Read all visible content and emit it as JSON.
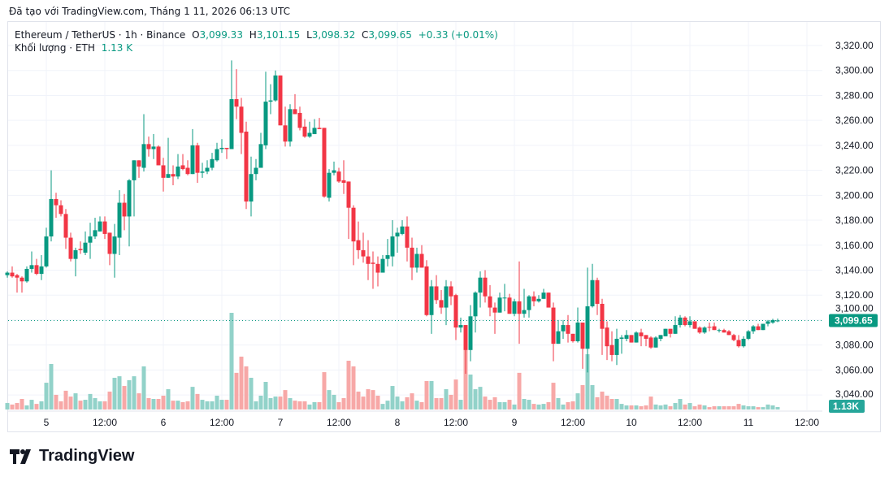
{
  "caption": "Đã tạo với TradingView.com, Tháng 1 11, 2026 06:13 UTC",
  "legend": {
    "symbol": "Ethereum / TetherUS · 1h · Binance",
    "o_label": "O",
    "o": "3,099.33",
    "h_label": "H",
    "h": "3,101.15",
    "l_label": "L",
    "l": "3,098.32",
    "c_label": "C",
    "c": "3,099.65",
    "change": "+0.33 (+0.01%)",
    "volume_label": "Khối lượng · ETH",
    "volume_value": "1.13 K"
  },
  "logo_text": "TradingView",
  "colors": {
    "up": "#089981",
    "down": "#f23645",
    "up_volume": "#92d2c9",
    "down_volume": "#f7a8a7",
    "grid": "#f0f3fa"
  },
  "chart_data": {
    "type": "candlestick",
    "interval": "1h",
    "y_ticks": [
      "3,320.00",
      "3,300.00",
      "3,280.00",
      "3,260.00",
      "3,240.00",
      "3,220.00",
      "3,200.00",
      "3,180.00",
      "3,160.00",
      "3,140.00",
      "3,120.00",
      "3,100.00",
      "3,080.00",
      "3,060.00",
      "3,040.00"
    ],
    "ylim": [
      3040,
      3320
    ],
    "x_ticks": [
      "5",
      "12:00",
      "6",
      "12:00",
      "7",
      "12:00",
      "8",
      "12:00",
      "9",
      "12:00",
      "10",
      "12:00",
      "11",
      "12:00"
    ],
    "last_price_label": "3,099.65",
    "last_volume_label": "1.13K",
    "volume_unit": "K ETH",
    "grid": true,
    "candles_fields": [
      "open",
      "high",
      "low",
      "close",
      "volume"
    ],
    "candles": [
      [
        3136,
        3139,
        3134,
        3138,
        3.0
      ],
      [
        3138,
        3143,
        3134,
        3135,
        2.3
      ],
      [
        3136,
        3137,
        3122,
        3134,
        3.0
      ],
      [
        3134,
        3135,
        3122,
        3131,
        4.9
      ],
      [
        3131,
        3143,
        3130,
        3141,
        1.9
      ],
      [
        3141,
        3155,
        3138,
        3144,
        4.5
      ],
      [
        3144,
        3149,
        3136,
        3137,
        2.6
      ],
      [
        3137,
        3152,
        3132,
        3143,
        3.8
      ],
      [
        3143,
        3174,
        3142,
        3167,
        12.4
      ],
      [
        3167,
        3220,
        3163,
        3197,
        21.1
      ],
      [
        3197,
        3202,
        3182,
        3192,
        6.8
      ],
      [
        3192,
        3196,
        3183,
        3185,
        3.8
      ],
      [
        3185,
        3189,
        3157,
        3166,
        8.7
      ],
      [
        3166,
        3170,
        3147,
        3149,
        6.0
      ],
      [
        3149,
        3158,
        3135,
        3156,
        7.5
      ],
      [
        3157,
        3163,
        3153,
        3156,
        4.1
      ],
      [
        3154,
        3171,
        3152,
        3162,
        4.5
      ],
      [
        3162,
        3178,
        3149,
        3167,
        7.2
      ],
      [
        3167,
        3182,
        3165,
        3172,
        5.3
      ],
      [
        3171,
        3183,
        3171,
        3179,
        3.8
      ],
      [
        3179,
        3183,
        3165,
        3169,
        3.8
      ],
      [
        3170,
        3170,
        3144,
        3153,
        8.3
      ],
      [
        3153,
        3177,
        3134,
        3167,
        14.7
      ],
      [
        3166,
        3204,
        3152,
        3194,
        15.4
      ],
      [
        3194,
        3201,
        3172,
        3183,
        10.9
      ],
      [
        3183,
        3213,
        3159,
        3212,
        13.6
      ],
      [
        3212,
        3228,
        3183,
        3228,
        15.4
      ],
      [
        3228,
        3228,
        3214,
        3223,
        7.5
      ],
      [
        3222,
        3265,
        3219,
        3241,
        20.0
      ],
      [
        3241,
        3247,
        3231,
        3237,
        5.3
      ],
      [
        3237,
        3249,
        3229,
        3239,
        4.9
      ],
      [
        3239,
        3240,
        3224,
        3224,
        4.9
      ],
      [
        3224,
        3230,
        3203,
        3214,
        6.4
      ],
      [
        3214,
        3246,
        3214,
        3217,
        9.4
      ],
      [
        3217,
        3224,
        3208,
        3215,
        4.1
      ],
      [
        3215,
        3233,
        3213,
        3223,
        4.1
      ],
      [
        3224,
        3233,
        3220,
        3221,
        3.4
      ],
      [
        3222,
        3228,
        3216,
        3217,
        3.8
      ],
      [
        3217,
        3253,
        3217,
        3240,
        10.5
      ],
      [
        3240,
        3242,
        3210,
        3218,
        7.2
      ],
      [
        3218,
        3226,
        3214,
        3219,
        4.5
      ],
      [
        3219,
        3228,
        3217,
        3222,
        3.8
      ],
      [
        3222,
        3234,
        3220,
        3229,
        3.8
      ],
      [
        3228,
        3242,
        3227,
        3237,
        6.4
      ],
      [
        3237,
        3245,
        3234,
        3238,
        4.5
      ],
      [
        3238,
        3238,
        3229,
        3237,
        4.5
      ],
      [
        3237,
        3308,
        3237,
        3277,
        44.8
      ],
      [
        3277,
        3301,
        3261,
        3271,
        17.0
      ],
      [
        3271,
        3278,
        3233,
        3250,
        24.5
      ],
      [
        3251,
        3259,
        3189,
        3195,
        20.0
      ],
      [
        3195,
        3231,
        3183,
        3217,
        14.7
      ],
      [
        3217,
        3229,
        3212,
        3222,
        3.8
      ],
      [
        3222,
        3250,
        3222,
        3241,
        6.4
      ],
      [
        3240,
        3299,
        3237,
        3275,
        12.8
      ],
      [
        3275,
        3289,
        3265,
        3276,
        5.3
      ],
      [
        3276,
        3300,
        3275,
        3296,
        6.0
      ],
      [
        3296,
        3296,
        3256,
        3256,
        6.0
      ],
      [
        3256,
        3271,
        3239,
        3243,
        9.0
      ],
      [
        3243,
        3273,
        3239,
        3269,
        5.3
      ],
      [
        3269,
        3281,
        3265,
        3265,
        4.1
      ],
      [
        3266,
        3271,
        3252,
        3254,
        3.8
      ],
      [
        3255,
        3261,
        3246,
        3247,
        3.8
      ],
      [
        3247,
        3259,
        3246,
        3250,
        2.3
      ],
      [
        3249,
        3261,
        3249,
        3254,
        3.4
      ],
      [
        3254,
        3262,
        3253,
        3253,
        3.4
      ],
      [
        3254,
        3254,
        3198,
        3199,
        17.3
      ],
      [
        3198,
        3221,
        3195,
        3218,
        9.0
      ],
      [
        3218,
        3227,
        3216,
        3220,
        6.8
      ],
      [
        3219,
        3222,
        3210,
        3211,
        3.4
      ],
      [
        3212,
        3228,
        3201,
        3210,
        5.3
      ],
      [
        3211,
        3211,
        3165,
        3190,
        22.6
      ],
      [
        3190,
        3192,
        3144,
        3163,
        20.0
      ],
      [
        3164,
        3179,
        3149,
        3156,
        8.3
      ],
      [
        3156,
        3170,
        3146,
        3151,
        6.0
      ],
      [
        3151,
        3164,
        3132,
        3145,
        9.4
      ],
      [
        3146,
        3155,
        3125,
        3145,
        9.0
      ],
      [
        3145,
        3151,
        3127,
        3138,
        6.4
      ],
      [
        3138,
        3152,
        3138,
        3149,
        2.6
      ],
      [
        3149,
        3165,
        3143,
        3152,
        4.1
      ],
      [
        3151,
        3180,
        3143,
        3167,
        10.9
      ],
      [
        3167,
        3174,
        3154,
        3170,
        6.0
      ],
      [
        3169,
        3180,
        3168,
        3175,
        3.8
      ],
      [
        3175,
        3183,
        3147,
        3158,
        5.7
      ],
      [
        3158,
        3166,
        3132,
        3142,
        7.5
      ],
      [
        3142,
        3158,
        3138,
        3153,
        4.1
      ],
      [
        3153,
        3160,
        3142,
        3142,
        3.4
      ],
      [
        3143,
        3148,
        3103,
        3104,
        13.2
      ],
      [
        3104,
        3132,
        3089,
        3127,
        13.2
      ],
      [
        3127,
        3136,
        3113,
        3116,
        5.3
      ],
      [
        3116,
        3124,
        3105,
        3110,
        5.3
      ],
      [
        3110,
        3132,
        3096,
        3127,
        9.4
      ],
      [
        3127,
        3131,
        3112,
        3119,
        6.8
      ],
      [
        3120,
        3121,
        3084,
        3094,
        13.9
      ],
      [
        3094,
        3102,
        3090,
        3096,
        4.5
      ],
      [
        3096,
        3096,
        3057,
        3076,
        27.9
      ],
      [
        3076,
        3112,
        3067,
        3103,
        16.2
      ],
      [
        3103,
        3123,
        3090,
        3122,
        9.4
      ],
      [
        3122,
        3139,
        3110,
        3134,
        10.5
      ],
      [
        3134,
        3140,
        3114,
        3119,
        6.0
      ],
      [
        3119,
        3128,
        3103,
        3110,
        4.5
      ],
      [
        3110,
        3114,
        3089,
        3106,
        5.7
      ],
      [
        3106,
        3122,
        3106,
        3118,
        3.4
      ],
      [
        3118,
        3129,
        3107,
        3118,
        3.4
      ],
      [
        3118,
        3121,
        3105,
        3105,
        4.5
      ],
      [
        3105,
        3117,
        3103,
        3115,
        2.3
      ],
      [
        3115,
        3147,
        3081,
        3105,
        17.0
      ],
      [
        3105,
        3125,
        3102,
        3108,
        4.9
      ],
      [
        3108,
        3120,
        3102,
        3119,
        4.5
      ],
      [
        3119,
        3123,
        3111,
        3115,
        2.6
      ],
      [
        3115,
        3120,
        3114,
        3117,
        2.3
      ],
      [
        3117,
        3125,
        3117,
        3122,
        2.6
      ],
      [
        3122,
        3122,
        3110,
        3110,
        3.4
      ],
      [
        3110,
        3114,
        3067,
        3081,
        12.4
      ],
      [
        3081,
        3100,
        3081,
        3091,
        5.3
      ],
      [
        3091,
        3100,
        3085,
        3096,
        2.3
      ],
      [
        3096,
        3104,
        3082,
        3089,
        3.4
      ],
      [
        3089,
        3089,
        3082,
        3083,
        3.8
      ],
      [
        3083,
        3110,
        3082,
        3098,
        7.5
      ],
      [
        3098,
        3098,
        3061,
        3077,
        11.3
      ],
      [
        3077,
        3142,
        3058,
        3111,
        25.6
      ],
      [
        3111,
        3145,
        3110,
        3132,
        11.3
      ],
      [
        3132,
        3134,
        3104,
        3113,
        5.7
      ],
      [
        3113,
        3117,
        3072,
        3093,
        8.3
      ],
      [
        3094,
        3099,
        3068,
        3079,
        6.4
      ],
      [
        3080,
        3091,
        3067,
        3072,
        4.9
      ],
      [
        3072,
        3093,
        3064,
        3085,
        4.9
      ],
      [
        3085,
        3088,
        3073,
        3086,
        2.6
      ],
      [
        3085,
        3092,
        3083,
        3088,
        1.9
      ],
      [
        3088,
        3088,
        3082,
        3082,
        1.9
      ],
      [
        3082,
        3091,
        3082,
        3090,
        1.9
      ],
      [
        3090,
        3093,
        3079,
        3087,
        1.5
      ],
      [
        3088,
        3088,
        3079,
        3085,
        1.9
      ],
      [
        3086,
        3087,
        3077,
        3078,
        6.0
      ],
      [
        3078,
        3087,
        3078,
        3086,
        2.3
      ],
      [
        3085,
        3088,
        3083,
        3088,
        1.9
      ],
      [
        3087,
        3093,
        3087,
        3093,
        2.3
      ],
      [
        3093,
        3093,
        3086,
        3089,
        1.5
      ],
      [
        3089,
        3103,
        3089,
        3096,
        3.0
      ],
      [
        3096,
        3104,
        3094,
        3102,
        4.9
      ],
      [
        3102,
        3103,
        3095,
        3096,
        2.3
      ],
      [
        3096,
        3103,
        3094,
        3099,
        3.0
      ],
      [
        3099,
        3099,
        3093,
        3093,
        1.5
      ],
      [
        3094,
        3095,
        3089,
        3090,
        2.3
      ],
      [
        3090,
        3095,
        3089,
        3094,
        1.9
      ],
      [
        3094.5,
        3098,
        3091,
        3094,
        1.1
      ],
      [
        3095,
        3098,
        3092,
        3092,
        1.5
      ],
      [
        3092,
        3093,
        3090,
        3092,
        1.5
      ],
      [
        3092,
        3093,
        3090,
        3090,
        1.5
      ],
      [
        3091,
        3092,
        3088,
        3088,
        1.5
      ],
      [
        3088,
        3089,
        3083,
        3084,
        1.5
      ],
      [
        3084,
        3088,
        3078,
        3079,
        2.6
      ],
      [
        3079,
        3087,
        3078,
        3085,
        1.9
      ],
      [
        3085,
        3092,
        3084,
        3091,
        1.5
      ],
      [
        3091,
        3096,
        3089,
        3095,
        1.5
      ],
      [
        3095,
        3097,
        3092,
        3092,
        1.1
      ],
      [
        3092,
        3097,
        3092,
        3097,
        1.1
      ],
      [
        3097,
        3100,
        3095,
        3099,
        2.3
      ],
      [
        3098,
        3101,
        3097,
        3100,
        1.9
      ],
      [
        3099.33,
        3101.15,
        3098.32,
        3099.65,
        1.13
      ]
    ]
  }
}
